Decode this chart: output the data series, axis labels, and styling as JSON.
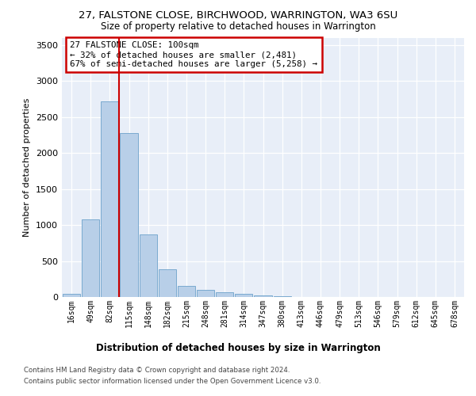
{
  "title1": "27, FALSTONE CLOSE, BIRCHWOOD, WARRINGTON, WA3 6SU",
  "title2": "Size of property relative to detached houses in Warrington",
  "xlabel": "Distribution of detached houses by size in Warrington",
  "ylabel": "Number of detached properties",
  "categories": [
    "16sqm",
    "49sqm",
    "82sqm",
    "115sqm",
    "148sqm",
    "182sqm",
    "215sqm",
    "248sqm",
    "281sqm",
    "314sqm",
    "347sqm",
    "380sqm",
    "413sqm",
    "446sqm",
    "479sqm",
    "513sqm",
    "546sqm",
    "579sqm",
    "612sqm",
    "645sqm",
    "678sqm"
  ],
  "values": [
    40,
    1080,
    2720,
    2280,
    870,
    390,
    155,
    95,
    65,
    40,
    20,
    10,
    5,
    3,
    2,
    2,
    1,
    1,
    1,
    1,
    1
  ],
  "bar_color": "#b8cfe8",
  "bar_edge_color": "#7aaad0",
  "vline_color": "#cc0000",
  "annotation_text": "27 FALSTONE CLOSE: 100sqm\n← 32% of detached houses are smaller (2,481)\n67% of semi-detached houses are larger (5,258) →",
  "ylim": [
    0,
    3600
  ],
  "yticks": [
    0,
    500,
    1000,
    1500,
    2000,
    2500,
    3000,
    3500
  ],
  "grid_color": "#c8d4e8",
  "plot_bg_color": "#e8eef8",
  "footer1": "Contains HM Land Registry data © Crown copyright and database right 2024.",
  "footer2": "Contains public sector information licensed under the Open Government Licence v3.0."
}
